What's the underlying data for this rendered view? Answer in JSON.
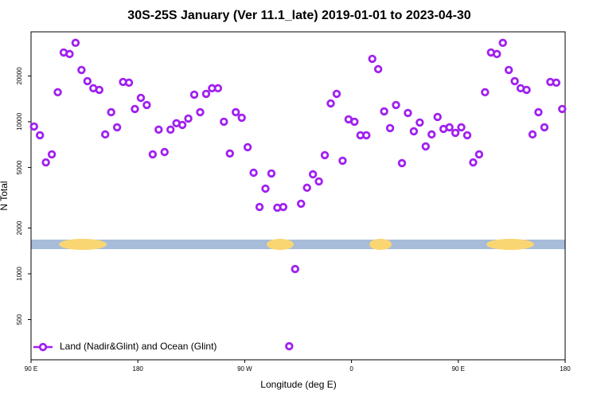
{
  "chart_data": {
    "type": "scatter",
    "title": "30S-25S January (Ver 11.1_late)   2019-01-01 to 2023-04-30",
    "xlabel": "Longitude (deg E)",
    "ylabel": "N Total",
    "log_y": true,
    "grid": false,
    "legend": "lower left",
    "xlim": [
      90,
      540
    ],
    "xticks": [
      {
        "value": 90,
        "label": "90 E"
      },
      180,
      {
        "value": 270,
        "label": "90 W"
      },
      {
        "value": 360,
        "label": "0"
      },
      {
        "value": 450,
        "label": "90 E"
      },
      {
        "value": 540,
        "label": "180"
      }
    ],
    "ylim": [
      272,
      39000
    ],
    "yticks": [
      500,
      1000,
      2000,
      5000,
      10000,
      20000
    ],
    "series": [
      {
        "name": "Land (Nadir&Glint) and Ocean (Glint)",
        "color": "#a020f0",
        "x": [
          92.5,
          97.5,
          102.5,
          107.5,
          112.5,
          117.5,
          122.5,
          127.5,
          132.5,
          137.5,
          142.5,
          147.5,
          152.5,
          157.5,
          162.5,
          167.5,
          172.5,
          177.5,
          182.5,
          187.5,
          192.5,
          197.5,
          202.5,
          207.5,
          212.5,
          217.5,
          222.5,
          227.5,
          232.5,
          237.5,
          242.5,
          247.5,
          252.5,
          257.5,
          262.5,
          267.5,
          272.5,
          277.5,
          282.5,
          287.5,
          292.5,
          297.5,
          302.5,
          307.5,
          312.5,
          317.5,
          322.5,
          327.5,
          332.5,
          337.5,
          342.5,
          347.5,
          352.5,
          357.5,
          362.5,
          367.5,
          372.5,
          377.5,
          382.5,
          387.5,
          392.5,
          397.5,
          402.5,
          407.5,
          412.5,
          417.5,
          422.5,
          427.5,
          432.5,
          437.5,
          442.5,
          447.5,
          452.5,
          457.5,
          462.5,
          467.5,
          472.5,
          477.5,
          482.5,
          487.5,
          492.5,
          497.5,
          502.5,
          507.5,
          512.5,
          517.5,
          522.5,
          527.5,
          532.5,
          537.5
        ],
        "values": [
          9300,
          8150,
          5400,
          6100,
          15630,
          28540,
          27870,
          33000,
          21890,
          18490,
          16600,
          16200,
          8250,
          11550,
          9190,
          18270,
          18060,
          12130,
          14360,
          12880,
          6100,
          8870,
          6320,
          8870,
          9770,
          9530,
          10490,
          15070,
          11550,
          15250,
          16600,
          16600,
          10000,
          6180,
          11550,
          10620,
          6800,
          4620,
          2750,
          3630,
          4570,
          2720,
          2750,
          334,
          1075,
          2890,
          3680,
          4510,
          4050,
          6030,
          13190,
          15250,
          5540,
          10370,
          10000,
          8150,
          8150,
          25920,
          22170,
          11700,
          9080,
          12880,
          5340,
          11420,
          8650,
          9880,
          6880,
          8250,
          10750,
          8970,
          9190,
          8450,
          9190,
          8150,
          5400,
          6100,
          15630,
          28540,
          27870,
          33000,
          21890,
          18490,
          16600,
          16200,
          8250,
          11550,
          9190,
          18270,
          18060,
          12130
        ]
      }
    ]
  }
}
